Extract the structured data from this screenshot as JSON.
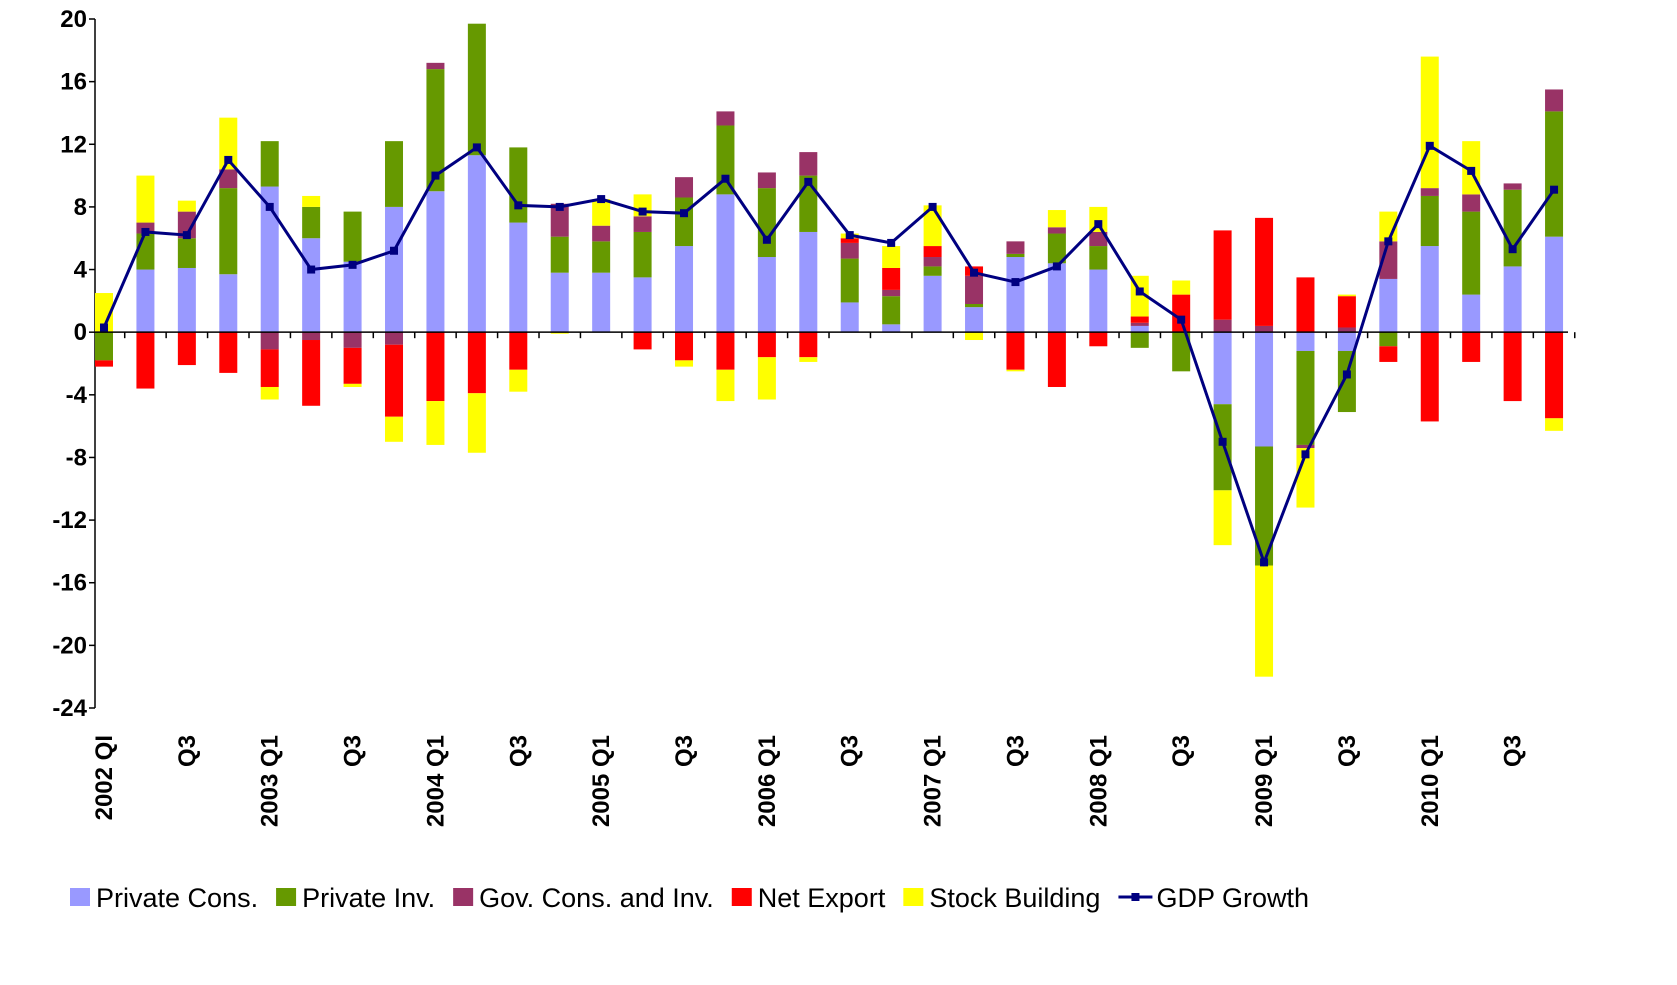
{
  "chart_data": {
    "type": "bar",
    "categories": [
      "2002 QI",
      null,
      "Q3",
      null,
      "2003 Q1",
      null,
      "Q3",
      null,
      "2004 Q1",
      null,
      "Q3",
      null,
      "2005 Q1",
      null,
      "Q3",
      null,
      "2006 Q1",
      null,
      "Q3",
      null,
      "2007 Q1",
      null,
      "Q3",
      null,
      "2008 Q1",
      null,
      "Q3",
      null,
      "2009 Q1",
      null,
      "Q3",
      null,
      "2010 Q1",
      null,
      "Q3",
      null
    ],
    "series": [
      {
        "name": "Private Cons.",
        "color": "#9999ff",
        "values": [
          0,
          4.0,
          4.1,
          3.7,
          9.3,
          6.0,
          4.5,
          8.0,
          9.0,
          11.3,
          7.0,
          3.8,
          3.8,
          3.5,
          5.5,
          8.8,
          4.8,
          6.4,
          1.9,
          0.5,
          3.6,
          1.6,
          4.8,
          4.4,
          4.0,
          0.4,
          0,
          -4.6,
          -7.3,
          -1.2,
          -1.2,
          3.4,
          5.5,
          2.4,
          4.2,
          6.1
        ]
      },
      {
        "name": "Private Inv.",
        "color": "#669900",
        "values": [
          -1.8,
          2.3,
          1.9,
          5.5,
          2.9,
          2.0,
          3.2,
          4.2,
          7.8,
          8.4,
          4.8,
          2.3,
          2.0,
          2.9,
          3.1,
          4.4,
          4.4,
          3.6,
          2.8,
          1.8,
          0.6,
          0.2,
          0.2,
          1.9,
          1.5,
          -1.0,
          -2.5,
          -5.5,
          -7.6,
          -6.0,
          -3.9,
          -0.9,
          3.2,
          5.3,
          4.9,
          8.0
        ]
      },
      {
        "name": "Gov. Cons. and Inv.",
        "color": "#993366",
        "values": [
          0,
          0.7,
          1.7,
          1.2,
          -1.1,
          -0.5,
          -1.0,
          -0.8,
          0.4,
          0,
          0,
          2.1,
          1.0,
          1.0,
          1.3,
          0.9,
          1.0,
          1.5,
          1.0,
          0.4,
          0.6,
          1.8,
          0.8,
          0.4,
          0.9,
          0.2,
          0,
          0.8,
          0.4,
          -0.2,
          0.3,
          2.4,
          0.5,
          1.1,
          0.4,
          1.4
        ]
      },
      {
        "name": "Net Export",
        "color": "#ff0000",
        "values": [
          -0.4,
          -3.6,
          -2.1,
          -2.6,
          -2.4,
          -4.2,
          -2.3,
          -4.6,
          -4.4,
          -3.9,
          -2.4,
          0,
          0,
          -1.1,
          -1.8,
          -2.4,
          -1.6,
          -1.6,
          0.3,
          1.4,
          0.7,
          0.6,
          -2.4,
          -3.5,
          -0.9,
          0.4,
          2.4,
          5.7,
          6.9,
          3.5,
          2.0,
          -1.0,
          -5.7,
          -1.9,
          -4.4,
          -5.5
        ]
      },
      {
        "name": "Stock Building",
        "color": "#ffff00",
        "values": [
          2.5,
          3.0,
          0.7,
          3.3,
          -0.8,
          0.7,
          -0.2,
          -1.6,
          -2.8,
          -3.8,
          -1.4,
          -0.1,
          1.7,
          1.4,
          -0.4,
          -2.0,
          -2.7,
          -0.3,
          0.3,
          1.4,
          2.6,
          -0.5,
          -0.1,
          1.1,
          1.6,
          2.6,
          0.9,
          -3.5,
          -7.1,
          -3.8,
          0.1,
          1.9,
          8.4,
          3.4,
          0,
          -0.8
        ]
      },
      {
        "name": "GDP Growth",
        "type": "line",
        "color": "#000080",
        "values": [
          0.3,
          6.4,
          6.2,
          11.0,
          8.0,
          4.0,
          4.3,
          5.2,
          10.0,
          11.8,
          8.1,
          8.0,
          8.5,
          7.7,
          7.6,
          9.8,
          5.9,
          9.6,
          6.2,
          5.7,
          8.0,
          3.8,
          3.2,
          4.2,
          6.9,
          2.6,
          0.8,
          -7.0,
          -14.7,
          -7.8,
          -2.7,
          5.8,
          11.9,
          10.3,
          5.3,
          9.1
        ]
      }
    ],
    "ylim": [
      -24,
      20
    ],
    "yticks": [
      -24,
      -20,
      -16,
      -12,
      -8,
      -4,
      0,
      4,
      8,
      12,
      16,
      20
    ],
    "legend": "bottom"
  }
}
